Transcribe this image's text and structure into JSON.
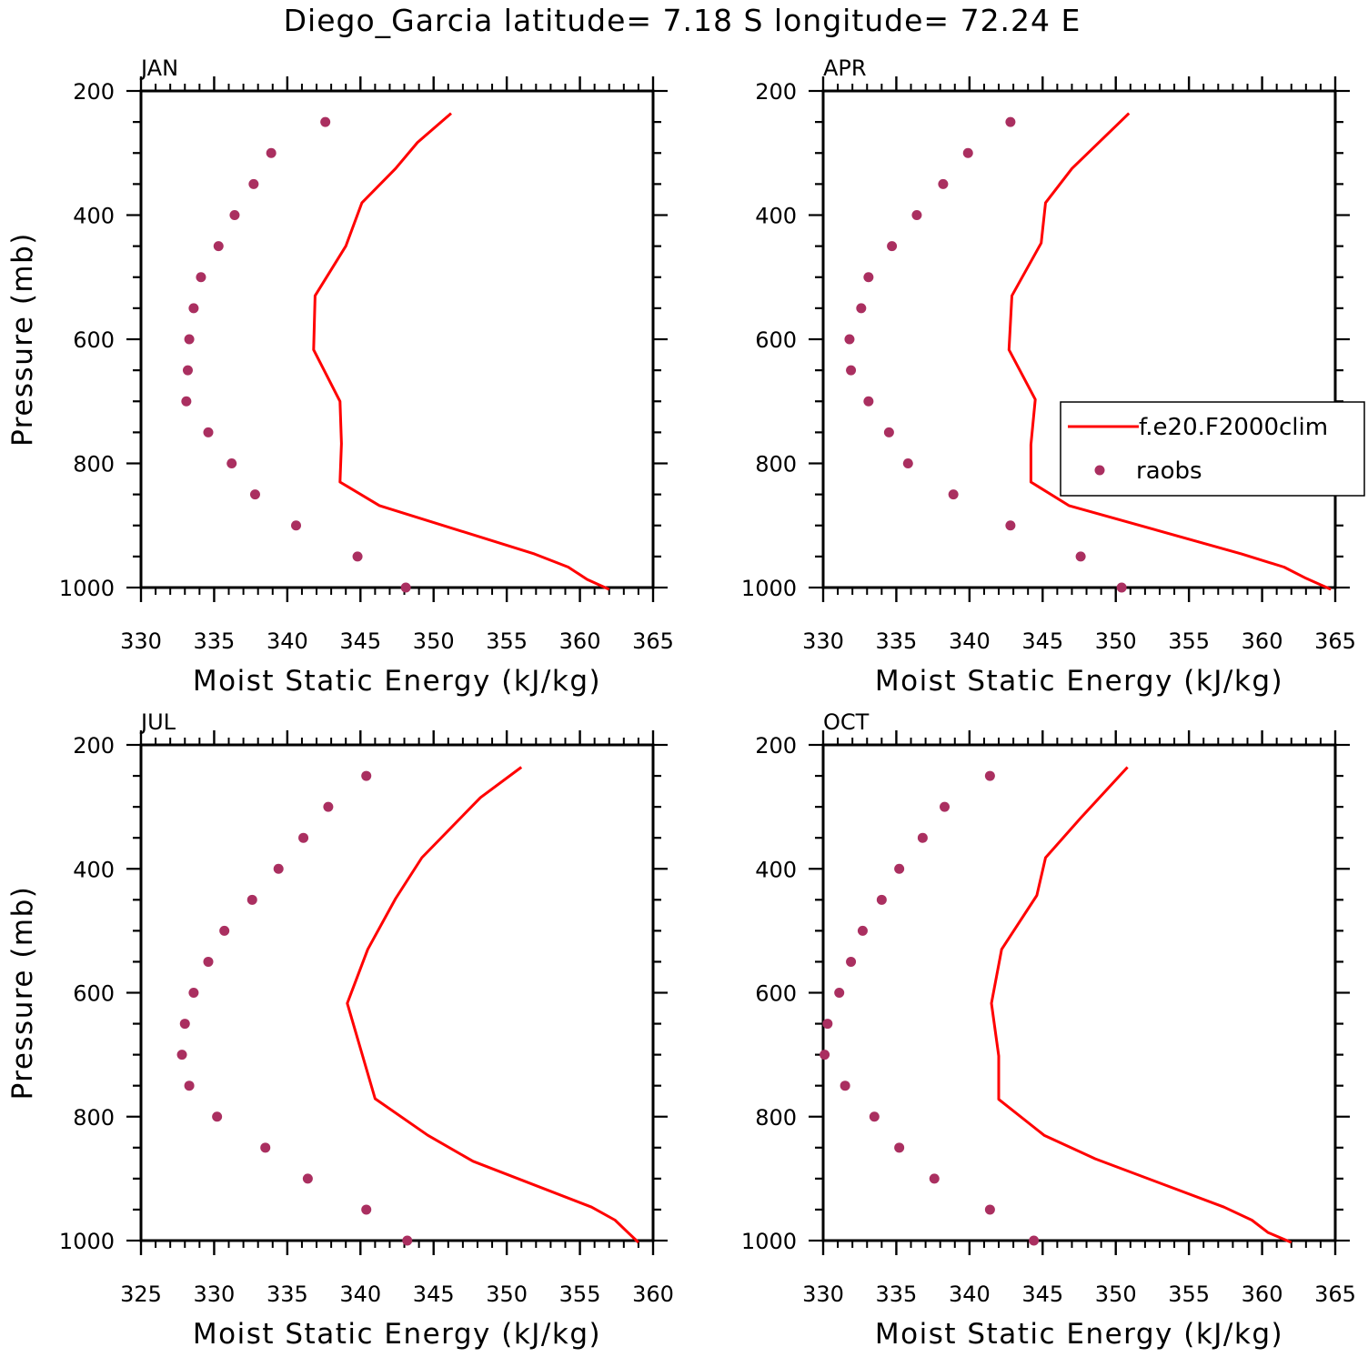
{
  "figure": {
    "title": "Diego_Garcia  latitude= 7.18 S longitude= 72.24 E"
  },
  "legend": {
    "model_label": "f.e20.F2000clim",
    "obs_label": "raobs",
    "panel": "APR"
  },
  "colors": {
    "model_line": "#ff0000",
    "obs_marker": "#aa2f60",
    "axes": "#000000",
    "background": "#ffffff"
  },
  "chart_data": [
    {
      "type": "line",
      "panel": "JAN",
      "title": "JAN",
      "xlabel": "Moist Static Energy (kJ/kg)",
      "ylabel": "Pressure (mb)",
      "xlim": [
        330,
        365
      ],
      "ylim": [
        200,
        1000
      ],
      "y_inverted": true,
      "xticks": [
        330,
        335,
        340,
        345,
        350,
        355,
        360,
        365
      ],
      "yticks": [
        200,
        400,
        600,
        800,
        1000
      ],
      "series": [
        {
          "name": "f.e20.F2000clim",
          "kind": "line",
          "x": [
            351.2,
            348.9,
            347.4,
            345.1,
            344.0,
            341.9,
            341.8,
            343.6,
            343.7,
            343.6,
            346.3,
            356.9,
            359.2,
            360.5,
            362.0
          ],
          "y": [
            236,
            283,
            325,
            380,
            450,
            530,
            617,
            700,
            768,
            830,
            868,
            946,
            967,
            987,
            1003
          ]
        },
        {
          "name": "raobs",
          "kind": "scatter",
          "x": [
            342.6,
            338.9,
            337.7,
            336.4,
            335.3,
            334.1,
            333.6,
            333.3,
            333.2,
            333.1,
            334.6,
            336.2,
            337.8,
            340.6,
            344.8,
            348.1
          ],
          "y": [
            250,
            300,
            350,
            400,
            450,
            500,
            550,
            600,
            650,
            700,
            750,
            800,
            850,
            900,
            950,
            1000
          ]
        }
      ]
    },
    {
      "type": "line",
      "panel": "APR",
      "title": "APR",
      "xlabel": "Moist Static Energy (kJ/kg)",
      "ylabel": "",
      "xlim": [
        330,
        365
      ],
      "ylim": [
        200,
        1000
      ],
      "y_inverted": true,
      "xticks": [
        330,
        335,
        340,
        345,
        350,
        355,
        360,
        365
      ],
      "yticks": [
        200,
        400,
        600,
        800,
        1000
      ],
      "series": [
        {
          "name": "f.e20.F2000clim",
          "kind": "line",
          "x": [
            350.9,
            347.0,
            345.2,
            344.9,
            342.9,
            342.7,
            344.5,
            344.2,
            344.2,
            346.8,
            358.6,
            361.5,
            363.0,
            364.7
          ],
          "y": [
            236,
            325,
            380,
            445,
            530,
            617,
            697,
            770,
            830,
            868,
            946,
            967,
            985,
            1003
          ]
        },
        {
          "name": "raobs",
          "kind": "scatter",
          "x": [
            342.8,
            339.9,
            338.2,
            336.4,
            334.7,
            333.1,
            332.6,
            331.8,
            331.9,
            333.1,
            334.5,
            335.8,
            338.9,
            342.8,
            347.6,
            350.4
          ],
          "y": [
            250,
            300,
            350,
            400,
            450,
            500,
            550,
            600,
            650,
            700,
            750,
            800,
            850,
            900,
            950,
            1000
          ]
        }
      ]
    },
    {
      "type": "line",
      "panel": "JUL",
      "title": "JUL",
      "xlabel": "Moist Static Energy (kJ/kg)",
      "ylabel": "Pressure (mb)",
      "xlim": [
        325,
        360
      ],
      "ylim": [
        200,
        1000
      ],
      "y_inverted": true,
      "xticks": [
        325,
        330,
        335,
        340,
        345,
        350,
        355,
        360
      ],
      "yticks": [
        200,
        400,
        600,
        800,
        1000
      ],
      "series": [
        {
          "name": "f.e20.F2000clim",
          "kind": "line",
          "x": [
            351.0,
            348.2,
            344.2,
            342.4,
            340.5,
            339.1,
            341.0,
            344.6,
            347.7,
            355.8,
            357.4,
            358.2,
            359.0
          ],
          "y": [
            236,
            285,
            382,
            448,
            530,
            617,
            771,
            830,
            872,
            946,
            967,
            985,
            1003
          ]
        },
        {
          "name": "raobs",
          "kind": "scatter",
          "x": [
            340.4,
            337.8,
            336.1,
            334.4,
            332.6,
            330.7,
            329.6,
            328.6,
            328.0,
            327.8,
            328.3,
            330.2,
            333.5,
            336.4,
            340.4,
            343.2
          ],
          "y": [
            250,
            300,
            350,
            400,
            450,
            500,
            550,
            600,
            650,
            700,
            750,
            800,
            850,
            900,
            950,
            1000
          ]
        }
      ]
    },
    {
      "type": "line",
      "panel": "OCT",
      "title": "OCT",
      "xlabel": "Moist Static Energy (kJ/kg)",
      "ylabel": "",
      "xlim": [
        330,
        365
      ],
      "ylim": [
        200,
        1000
      ],
      "y_inverted": true,
      "xticks": [
        330,
        335,
        340,
        345,
        350,
        355,
        360,
        365
      ],
      "yticks": [
        200,
        400,
        600,
        800,
        1000
      ],
      "series": [
        {
          "name": "f.e20.F2000clim",
          "kind": "line",
          "x": [
            350.8,
            347.6,
            345.2,
            344.6,
            342.2,
            341.5,
            342.0,
            342.0,
            345.1,
            348.6,
            357.4,
            359.3,
            360.4,
            362.0
          ],
          "y": [
            236,
            318,
            382,
            443,
            530,
            617,
            702,
            772,
            830,
            868,
            946,
            967,
            987,
            1003
          ]
        },
        {
          "name": "raobs",
          "kind": "scatter",
          "x": [
            341.4,
            338.3,
            336.8,
            335.2,
            334.0,
            332.7,
            331.9,
            331.1,
            330.3,
            330.1,
            331.5,
            333.5,
            335.2,
            337.6,
            341.4,
            344.4
          ],
          "y": [
            250,
            300,
            350,
            400,
            450,
            500,
            550,
            600,
            650,
            700,
            750,
            800,
            850,
            900,
            950,
            1000
          ]
        }
      ]
    }
  ]
}
